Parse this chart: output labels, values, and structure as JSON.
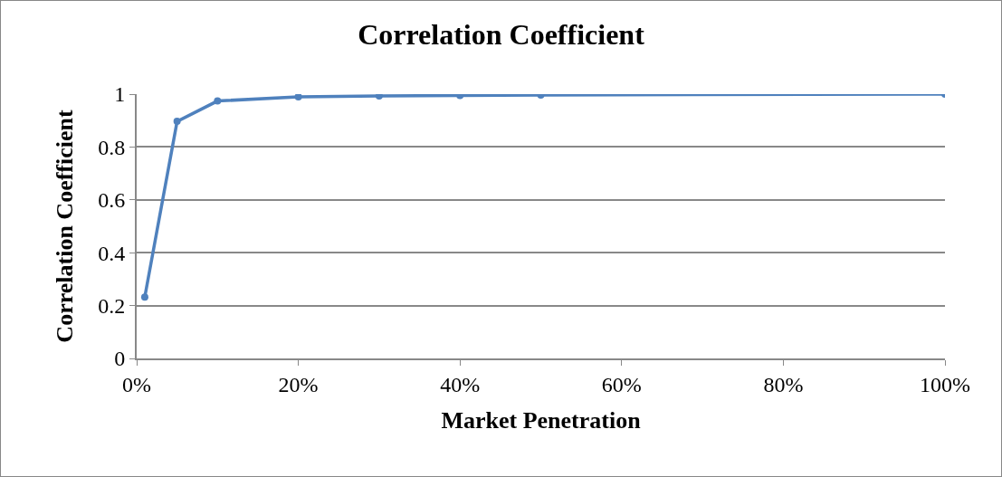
{
  "chart_data": {
    "type": "line",
    "title": "Correlation Coefficient",
    "xlabel": "Market Penetration",
    "ylabel": "Correlation Coefficient",
    "x": [
      1,
      5,
      10,
      20,
      30,
      40,
      50,
      100
    ],
    "series": [
      {
        "color": "#4f81bd",
        "values": [
          0.232,
          0.897,
          0.974,
          0.99,
          0.993,
          0.995,
          0.997,
          1.0
        ]
      }
    ],
    "xlim": [
      0,
      100
    ],
    "xticks": [
      {
        "value": 0,
        "label": "0%"
      },
      {
        "value": 20,
        "label": "20%"
      },
      {
        "value": 40,
        "label": "40%"
      },
      {
        "value": 60,
        "label": "60%"
      },
      {
        "value": 80,
        "label": "80%"
      },
      {
        "value": 100,
        "label": "100%"
      }
    ],
    "ylim": [
      0,
      1
    ],
    "yticks": [
      0,
      0.2,
      0.4,
      0.6,
      0.8,
      1
    ],
    "grid": "y",
    "marker": "circle",
    "line_style": "solid",
    "legend": false
  }
}
